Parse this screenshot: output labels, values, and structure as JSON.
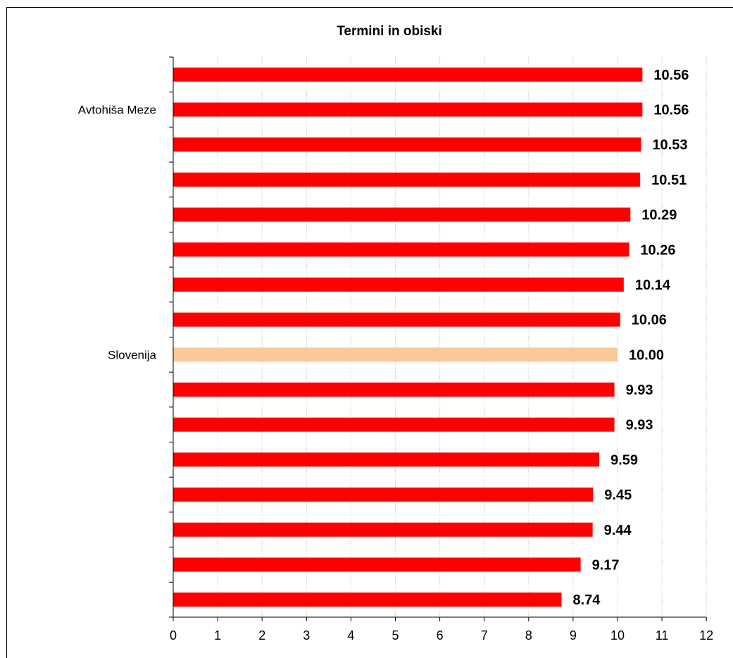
{
  "chart_data": {
    "type": "bar",
    "orientation": "horizontal",
    "title": "Termini in obiski",
    "xlabel": "",
    "ylabel": "",
    "xlim": [
      0,
      12
    ],
    "x_ticks": [
      "0",
      "1",
      "2",
      "3",
      "4",
      "5",
      "6",
      "7",
      "8",
      "9",
      "10",
      "11",
      "12"
    ],
    "grid": true,
    "legend": "none",
    "categories": [
      "Avtohiša Meze",
      "Slovenija"
    ],
    "bars": [
      {
        "label": "",
        "value": 10.56,
        "display": "10.56",
        "highlight": false
      },
      {
        "label": "Avtohiša Meze",
        "value": 10.56,
        "display": "10.56",
        "highlight": false
      },
      {
        "label": "",
        "value": 10.53,
        "display": "10.53",
        "highlight": false
      },
      {
        "label": "",
        "value": 10.51,
        "display": "10.51",
        "highlight": false
      },
      {
        "label": "",
        "value": 10.29,
        "display": "10.29",
        "highlight": false
      },
      {
        "label": "",
        "value": 10.26,
        "display": "10.26",
        "highlight": false
      },
      {
        "label": "",
        "value": 10.14,
        "display": "10.14",
        "highlight": false
      },
      {
        "label": "",
        "value": 10.06,
        "display": "10.06",
        "highlight": false
      },
      {
        "label": "Slovenija",
        "value": 10.0,
        "display": "10.00",
        "highlight": true
      },
      {
        "label": "",
        "value": 9.93,
        "display": "9.93",
        "highlight": false
      },
      {
        "label": "",
        "value": 9.93,
        "display": "9.93",
        "highlight": false
      },
      {
        "label": "",
        "value": 9.59,
        "display": "9.59",
        "highlight": false
      },
      {
        "label": "",
        "value": 9.45,
        "display": "9.45",
        "highlight": false
      },
      {
        "label": "",
        "value": 9.44,
        "display": "9.44",
        "highlight": false
      },
      {
        "label": "",
        "value": 9.17,
        "display": "9.17",
        "highlight": false
      },
      {
        "label": "",
        "value": 8.74,
        "display": "8.74",
        "highlight": false
      }
    ],
    "colors": {
      "bar": "#ff0000",
      "highlight": "#fbc999",
      "grid": "#c0c0c0",
      "axis": "#000000"
    }
  }
}
